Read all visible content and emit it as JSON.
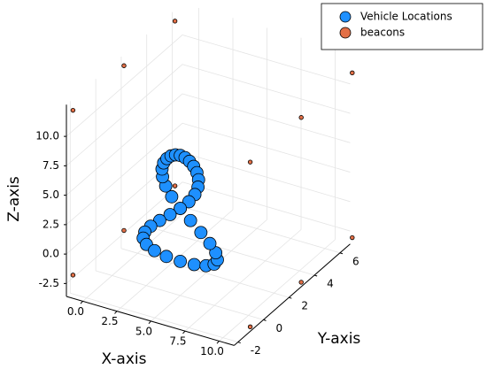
{
  "chart_data": {
    "type": "scatter3d",
    "xlabel": "X-axis",
    "ylabel": "Y-axis",
    "zlabel": "Z-axis",
    "xlim": [
      -1.2,
      11.1
    ],
    "ylim": [
      -2.3,
      6.8
    ],
    "zlim": [
      -3.6,
      12.7
    ],
    "xticks": [
      {
        "value": 0,
        "label": "0.0"
      },
      2.5,
      {
        "value": 5,
        "label": "5.0"
      },
      7.5,
      {
        "value": 10,
        "label": "10.0"
      }
    ],
    "yticks": [
      -2,
      0,
      2,
      4,
      6
    ],
    "zticks": [
      -2.5,
      {
        "value": 0,
        "label": "0.0"
      },
      2.5,
      {
        "value": 5,
        "label": "5.0"
      },
      7.5,
      {
        "value": 10,
        "label": "10.0"
      }
    ],
    "grid": true,
    "legend": "top-right",
    "series": [
      {
        "name": "beacons",
        "color": "#e26f46",
        "x": [
          -1,
          -1,
          -1,
          12,
          12,
          12,
          -1,
          -1,
          -1,
          12,
          12,
          12
        ],
        "y": [
          -2,
          2,
          6,
          -2,
          2,
          6,
          -2,
          2,
          6,
          -2,
          2,
          6
        ],
        "z": [
          -2,
          -2,
          -2,
          -2,
          -2,
          -2,
          12,
          12,
          12,
          12,
          12,
          12
        ]
      },
      {
        "name": "Vehicle Locations",
        "color": "#1e90ff",
        "x": [
          5,
          6.02,
          6.89,
          7.48,
          7.72,
          7.6,
          7.17,
          6.51,
          5.75,
          5,
          4.37,
          3.93,
          3.7,
          3.66,
          3.78,
          4.02,
          4.32,
          4.65,
          5,
          5.35,
          5.68,
          5.98,
          6.22,
          6.34,
          6.3,
          6.07,
          5.63,
          5,
          4.25,
          3.49,
          2.83,
          2.4,
          2.28,
          2.52,
          3.11,
          3.98
        ],
        "y": [
          0,
          0,
          0,
          0,
          0,
          0,
          0,
          0,
          0,
          0,
          0,
          0,
          0,
          0,
          0,
          0,
          0,
          0,
          0,
          0,
          0,
          0,
          0,
          0,
          0,
          0,
          0,
          0,
          0,
          0,
          0,
          0,
          0,
          0,
          0,
          0
        ],
        "z": [
          -0.7,
          -0.63,
          -0.43,
          -0.1,
          0.35,
          0.91,
          1.55,
          2.26,
          3.02,
          3.8,
          4.58,
          5.34,
          6.05,
          6.69,
          7.25,
          7.7,
          8.03,
          8.23,
          8.3,
          8.23,
          8.03,
          7.7,
          7.25,
          6.69,
          6.05,
          5.34,
          4.58,
          3.8,
          3.02,
          2.26,
          1.55,
          0.91,
          0.35,
          -0.1,
          -0.43,
          -0.63
        ]
      }
    ]
  }
}
